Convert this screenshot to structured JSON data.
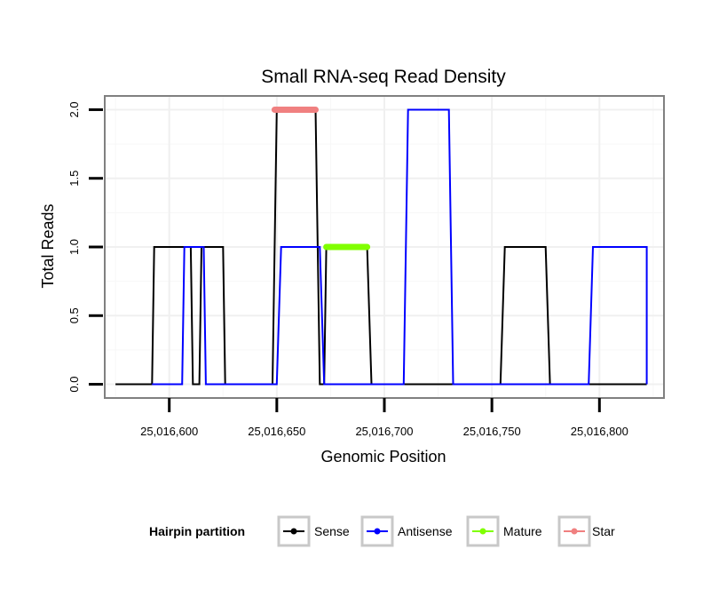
{
  "chart_data": {
    "type": "line",
    "title": "Small RNA-seq Read Density",
    "xlabel": "Genomic Position",
    "ylabel": "Total Reads",
    "xlim": [
      25016570,
      25016830
    ],
    "ylim": [
      -0.1,
      2.1
    ],
    "x_ticks": [
      25016600,
      25016650,
      25016700,
      25016750,
      25016800
    ],
    "x_tick_labels": [
      "25,016,600",
      "25,016,650",
      "25,016,700",
      "25,016,750",
      "25,016,800"
    ],
    "y_ticks": [
      0,
      0.5,
      1,
      1.5,
      2
    ],
    "y_tick_labels": [
      "0.0",
      "0.5",
      "1.0",
      "1.5",
      "2.0"
    ],
    "grid": true,
    "legend": {
      "title": "Hairpin partition",
      "position": "bottom",
      "entries": [
        {
          "name": "Sense",
          "color": "#000000"
        },
        {
          "name": "Antisense",
          "color": "#0000ff"
        },
        {
          "name": "Mature",
          "color": "#80ff00"
        },
        {
          "name": "Star",
          "color": "#f08080"
        }
      ]
    },
    "series": [
      {
        "name": "Sense",
        "color": "#000000",
        "points": [
          [
            25016575,
            0
          ],
          [
            25016592,
            0
          ],
          [
            25016593,
            1
          ],
          [
            25016610,
            1
          ],
          [
            25016611,
            0
          ],
          [
            25016614,
            0
          ],
          [
            25016615,
            1
          ],
          [
            25016625,
            1
          ],
          [
            25016626,
            0
          ],
          [
            25016648,
            0
          ],
          [
            25016650,
            2
          ],
          [
            25016668,
            2
          ],
          [
            25016670,
            0
          ],
          [
            25016672,
            0
          ],
          [
            25016673,
            1
          ],
          [
            25016692,
            1
          ],
          [
            25016694,
            0
          ],
          [
            25016754,
            0
          ],
          [
            25016756,
            1
          ],
          [
            25016775,
            1
          ],
          [
            25016777,
            0
          ],
          [
            25016822,
            0
          ]
        ]
      },
      {
        "name": "Antisense",
        "color": "#0000ff",
        "points": [
          [
            25016592,
            0
          ],
          [
            25016606,
            0
          ],
          [
            25016607,
            1
          ],
          [
            25016616,
            1
          ],
          [
            25016617,
            0
          ],
          [
            25016650,
            0
          ],
          [
            25016652,
            1
          ],
          [
            25016670,
            1
          ],
          [
            25016672,
            0
          ],
          [
            25016709,
            0
          ],
          [
            25016711,
            2
          ],
          [
            25016730,
            2
          ],
          [
            25016732,
            0
          ],
          [
            25016795,
            0
          ],
          [
            25016797,
            1
          ],
          [
            25016822,
            1
          ],
          [
            25016822,
            0
          ]
        ]
      },
      {
        "name": "Mature",
        "color": "#80ff00",
        "points": [
          [
            25016673,
            1
          ],
          [
            25016692,
            1
          ]
        ]
      },
      {
        "name": "Star",
        "color": "#f08080",
        "points": [
          [
            25016649,
            2
          ],
          [
            25016668,
            2
          ]
        ]
      }
    ]
  }
}
